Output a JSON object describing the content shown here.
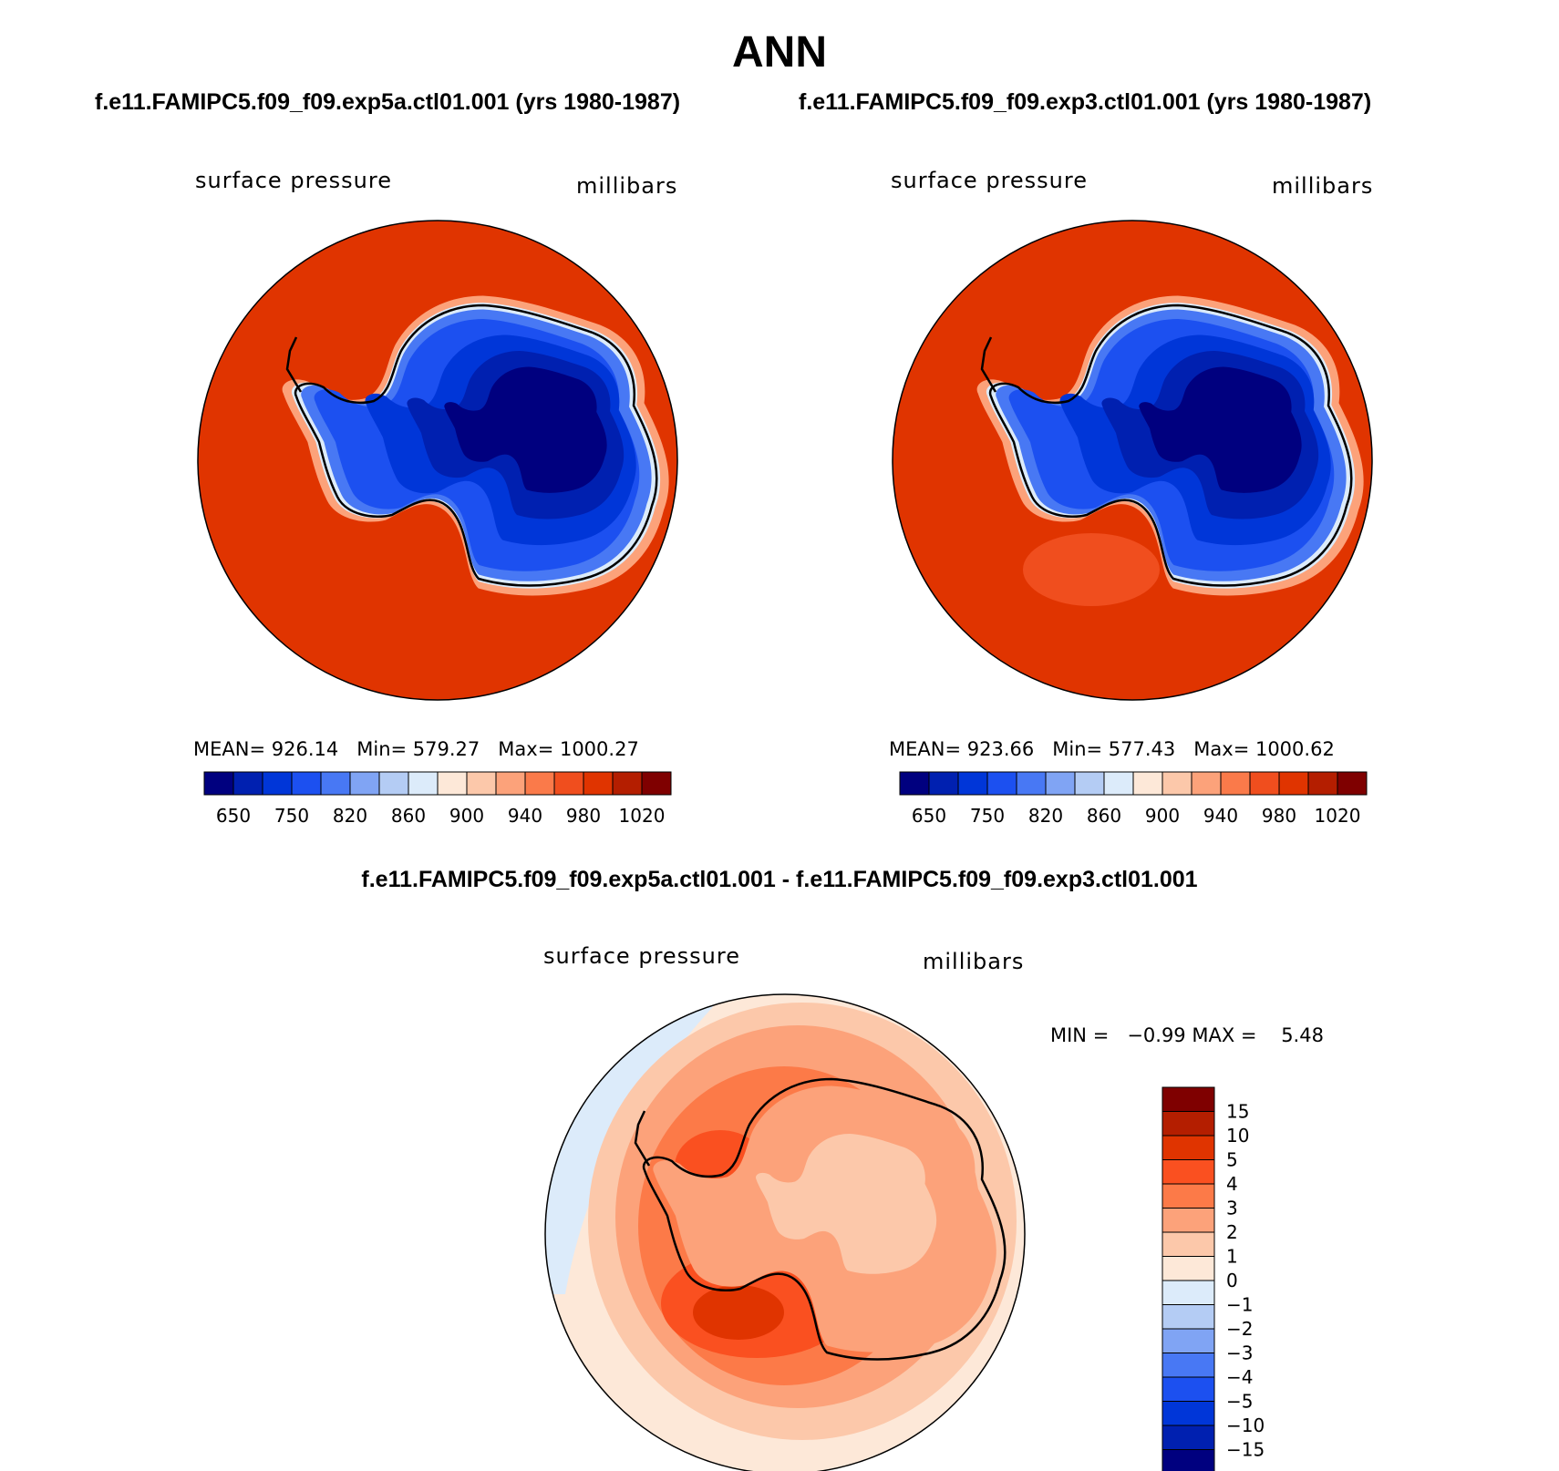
{
  "title": "ANN",
  "panels": [
    {
      "case_title": "f.e11.FAMIPC5.f09_f09.exp5a.ctl01.001 (yrs 1980-1987)",
      "variable": "surface pressure",
      "units": "millibars",
      "stats_text": "MEAN= 926.14   Min= 579.27   Max= 1000.27",
      "stats": {
        "mean": 926.14,
        "min": 579.27,
        "max": 1000.27
      }
    },
    {
      "case_title": "f.e11.FAMIPC5.f09_f09.exp3.ctl01.001 (yrs 1980-1987)",
      "variable": "surface pressure",
      "units": "millibars",
      "stats_text": "MEAN= 923.66   Min= 577.43   Max= 1000.62",
      "stats": {
        "mean": 923.66,
        "min": 577.43,
        "max": 1000.62
      }
    }
  ],
  "colorbar_main": {
    "tick_labels": [
      "650",
      "750",
      "820",
      "860",
      "900",
      "940",
      "980",
      "1020"
    ],
    "colors": [
      "#00007f",
      "#0020b0",
      "#0036d8",
      "#1c50f0",
      "#4878f4",
      "#80a4f4",
      "#b4ccf4",
      "#dcebfa",
      "#fde8d8",
      "#fcc8aa",
      "#fca27a",
      "#fa7a4a",
      "#f04e1e",
      "#e03400",
      "#b41e00",
      "#7f0000"
    ]
  },
  "difference": {
    "title": "f.e11.FAMIPC5.f09_f09.exp5a.ctl01.001 - f.e11.FAMIPC5.f09_f09.exp3.ctl01.001",
    "variable": "surface pressure",
    "units": "millibars",
    "min_text": "MIN =   −0.99 MAX =    5.48",
    "stats": {
      "min": -0.99,
      "max": 5.48
    },
    "colorbar": {
      "tick_labels": [
        "15",
        "10",
        "5",
        "4",
        "3",
        "2",
        "1",
        "0",
        "−1",
        "−2",
        "−3",
        "−4",
        "−5",
        "−10",
        "−15"
      ],
      "colors": [
        "#7f0000",
        "#b41e00",
        "#e03400",
        "#fa5020",
        "#fc7a48",
        "#fca27a",
        "#fcc8aa",
        "#fde8d8",
        "#dcebfa",
        "#b4ccf4",
        "#80a4f4",
        "#4878f4",
        "#1c50f0",
        "#0036d8",
        "#0020b0",
        "#00007f"
      ]
    }
  },
  "colors": {
    "ocean_main": "#e03400",
    "continent_deep": "#00007f",
    "diff_background": "#fde8d8"
  }
}
